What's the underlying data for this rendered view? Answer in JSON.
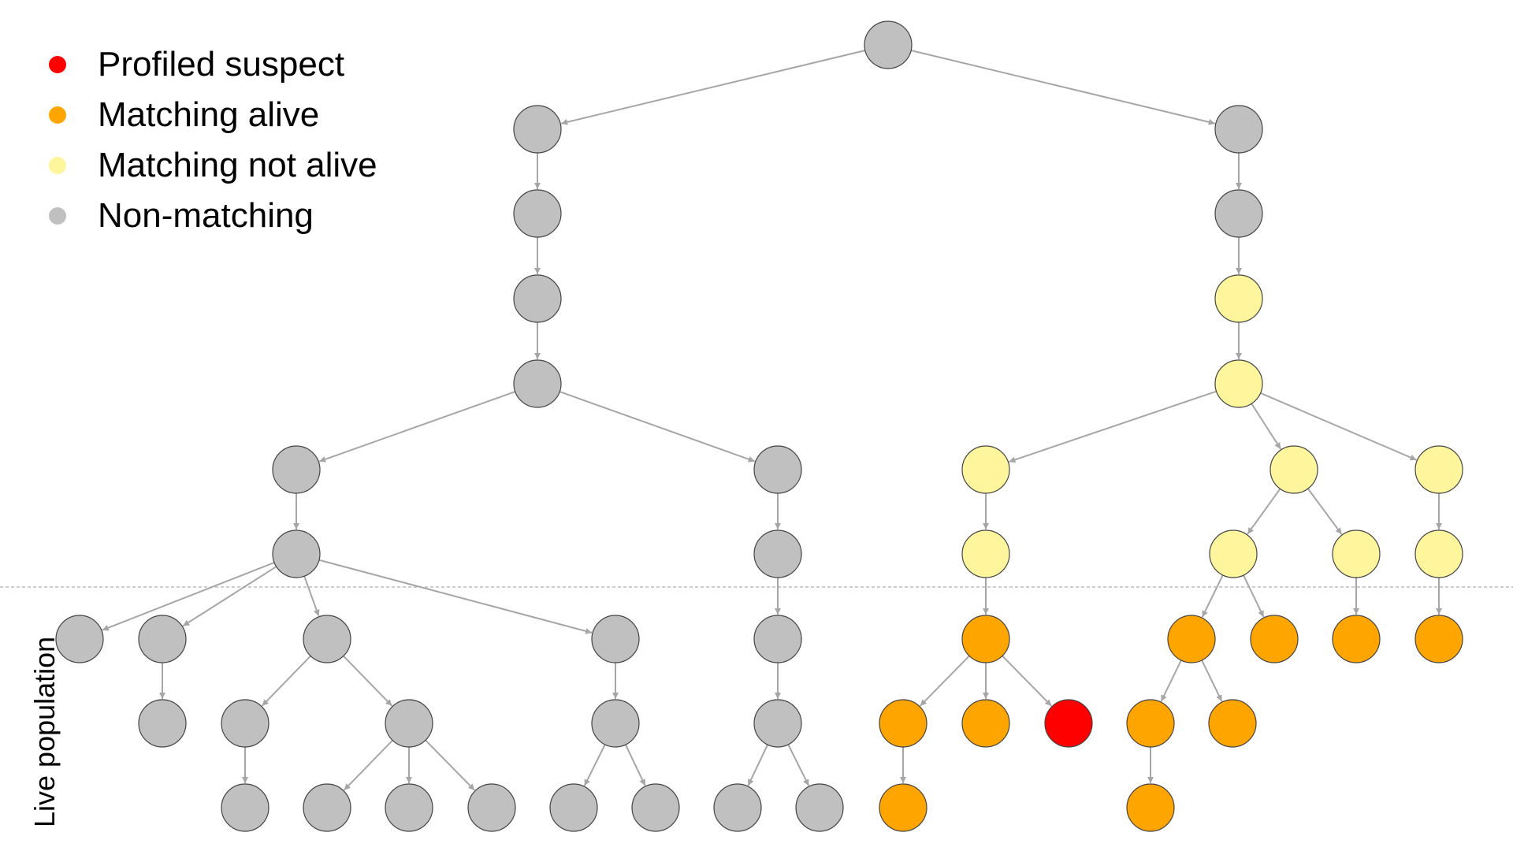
{
  "legend": [
    {
      "label": "Profiled suspect",
      "category": "suspect",
      "color": "#ff0000"
    },
    {
      "label": "Matching alive",
      "category": "alive",
      "color": "#ffa500"
    },
    {
      "label": "Matching not alive",
      "category": "not_alive",
      "color": "#fff59d"
    },
    {
      "label": "Non-matching",
      "category": "non",
      "color": "#c0c0c0"
    }
  ],
  "live_population_label": "Live population",
  "colors": {
    "edge": "#a6a6a6",
    "node_stroke": "#444444",
    "divider": "#bbbbbb",
    "suspect": "#ff0000",
    "alive": "#ffa500",
    "not_alive": "#fff59d",
    "non": "#c0c0c0"
  },
  "tree": {
    "nodes": [
      {
        "id": "root",
        "category": "non"
      },
      {
        "id": "L1",
        "category": "non"
      },
      {
        "id": "L2",
        "category": "non"
      },
      {
        "id": "L3",
        "category": "non"
      },
      {
        "id": "L4",
        "category": "non"
      },
      {
        "id": "L5a",
        "category": "non"
      },
      {
        "id": "L5b",
        "category": "non"
      },
      {
        "id": "L6a",
        "category": "non"
      },
      {
        "id": "L7a",
        "category": "non"
      },
      {
        "id": "L7b",
        "category": "non"
      },
      {
        "id": "L7c",
        "category": "non"
      },
      {
        "id": "L7d",
        "category": "non"
      },
      {
        "id": "L8b",
        "category": "non"
      },
      {
        "id": "L8c",
        "category": "non"
      },
      {
        "id": "L8d",
        "category": "non"
      },
      {
        "id": "L8e",
        "category": "non"
      },
      {
        "id": "L9c",
        "category": "non"
      },
      {
        "id": "L9d1",
        "category": "non"
      },
      {
        "id": "L9d2",
        "category": "non"
      },
      {
        "id": "L9d3",
        "category": "non"
      },
      {
        "id": "L9e1",
        "category": "non"
      },
      {
        "id": "L9e2",
        "category": "non"
      },
      {
        "id": "L6b",
        "category": "non"
      },
      {
        "id": "L7f",
        "category": "non"
      },
      {
        "id": "L8f",
        "category": "non"
      },
      {
        "id": "L9f1",
        "category": "non"
      },
      {
        "id": "L9f2",
        "category": "non"
      },
      {
        "id": "R1",
        "category": "non"
      },
      {
        "id": "R2",
        "category": "non"
      },
      {
        "id": "R3",
        "category": "not_alive"
      },
      {
        "id": "R4",
        "category": "not_alive"
      },
      {
        "id": "R5a",
        "category": "not_alive"
      },
      {
        "id": "R6a",
        "category": "not_alive"
      },
      {
        "id": "R7a",
        "category": "alive"
      },
      {
        "id": "R8a1",
        "category": "alive"
      },
      {
        "id": "R8a2",
        "category": "alive"
      },
      {
        "id": "R8a3",
        "category": "suspect"
      },
      {
        "id": "R9a1",
        "category": "alive"
      },
      {
        "id": "R5b",
        "category": "not_alive"
      },
      {
        "id": "R6b1",
        "category": "not_alive"
      },
      {
        "id": "R6b2",
        "category": "not_alive"
      },
      {
        "id": "R7b1",
        "category": "alive"
      },
      {
        "id": "R7b2",
        "category": "alive"
      },
      {
        "id": "R7b3",
        "category": "alive"
      },
      {
        "id": "R8b1",
        "category": "alive"
      },
      {
        "id": "R8b2",
        "category": "alive"
      },
      {
        "id": "R9b1",
        "category": "alive"
      },
      {
        "id": "R5c",
        "category": "not_alive"
      },
      {
        "id": "R6c",
        "category": "not_alive"
      },
      {
        "id": "R7c",
        "category": "alive"
      }
    ],
    "edges": [
      [
        "root",
        "L1"
      ],
      [
        "root",
        "R1"
      ],
      [
        "L1",
        "L2"
      ],
      [
        "L2",
        "L3"
      ],
      [
        "L3",
        "L4"
      ],
      [
        "L4",
        "L5a"
      ],
      [
        "L4",
        "L5b"
      ],
      [
        "L5a",
        "L6a"
      ],
      [
        "L6a",
        "L7a"
      ],
      [
        "L6a",
        "L7b"
      ],
      [
        "L6a",
        "L7c"
      ],
      [
        "L6a",
        "L7d"
      ],
      [
        "L7b",
        "L8b"
      ],
      [
        "L7c",
        "L8c"
      ],
      [
        "L7c",
        "L8d"
      ],
      [
        "L7d",
        "L8e"
      ],
      [
        "L8c",
        "L9c"
      ],
      [
        "L8d",
        "L9d1"
      ],
      [
        "L8d",
        "L9d2"
      ],
      [
        "L8d",
        "L9d3"
      ],
      [
        "L8e",
        "L9e1"
      ],
      [
        "L8e",
        "L9e2"
      ],
      [
        "L5b",
        "L6b"
      ],
      [
        "L6b",
        "L7f"
      ],
      [
        "L7f",
        "L8f"
      ],
      [
        "L8f",
        "L9f1"
      ],
      [
        "L8f",
        "L9f2"
      ],
      [
        "R1",
        "R2"
      ],
      [
        "R2",
        "R3"
      ],
      [
        "R3",
        "R4"
      ],
      [
        "R4",
        "R5a"
      ],
      [
        "R4",
        "R5b"
      ],
      [
        "R4",
        "R5c"
      ],
      [
        "R5a",
        "R6a"
      ],
      [
        "R6a",
        "R7a"
      ],
      [
        "R7a",
        "R8a1"
      ],
      [
        "R7a",
        "R8a2"
      ],
      [
        "R7a",
        "R8a3"
      ],
      [
        "R8a1",
        "R9a1"
      ],
      [
        "R5b",
        "R6b1"
      ],
      [
        "R5b",
        "R6b2"
      ],
      [
        "R6b1",
        "R7b1"
      ],
      [
        "R6b1",
        "R7b2"
      ],
      [
        "R6b2",
        "R7b3"
      ],
      [
        "R7b1",
        "R8b1"
      ],
      [
        "R7b1",
        "R8b2"
      ],
      [
        "R8b1",
        "R9b1"
      ],
      [
        "R5c",
        "R6c"
      ],
      [
        "R6c",
        "R7c"
      ]
    ]
  }
}
